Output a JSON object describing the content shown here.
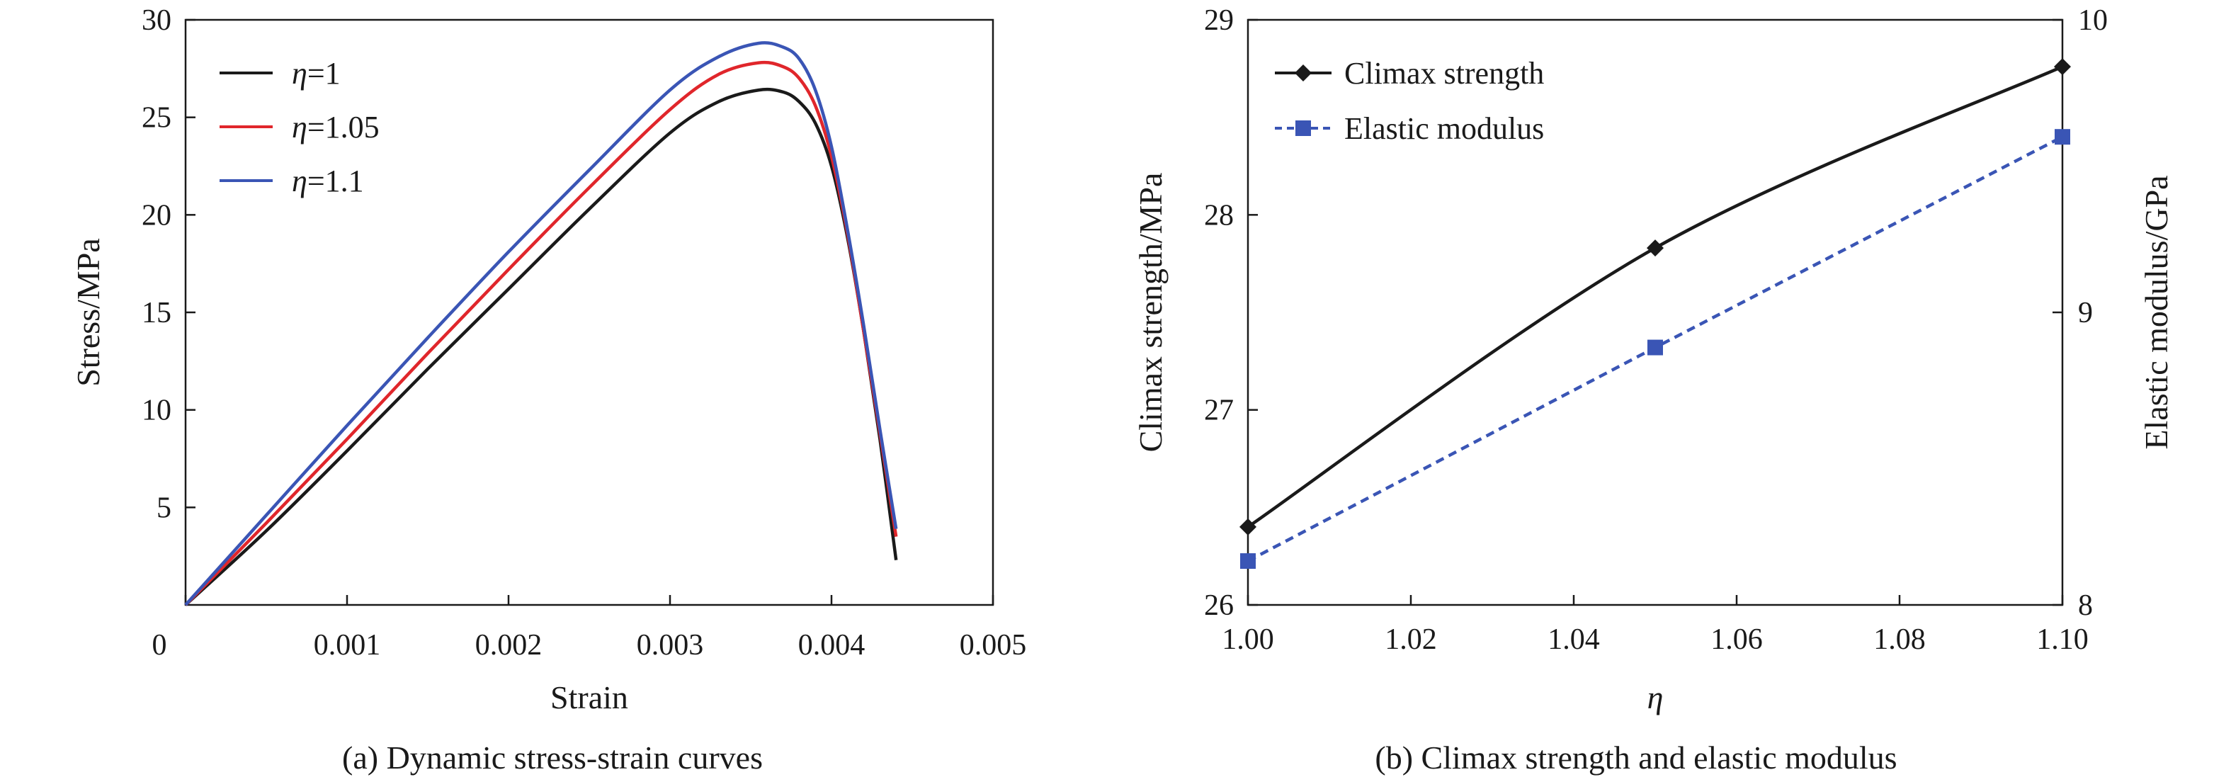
{
  "chart_data": [
    {
      "type": "line",
      "caption": "(a) Dynamic stress-strain curves",
      "xlabel": "Strain",
      "ylabel": "Stress/MPa",
      "xlim": [
        0,
        0.005
      ],
      "ylim": [
        0,
        30
      ],
      "x_ticks": [
        "0",
        "0.001",
        "0.002",
        "0.003",
        "0.004",
        "0.005"
      ],
      "y_ticks": [
        "5",
        "10",
        "15",
        "20",
        "25",
        "30"
      ],
      "grid": false,
      "legend_position": "top-left",
      "series": [
        {
          "name": "η=1",
          "color": "#1a1a1a",
          "x": [
            0,
            0.0005,
            0.001,
            0.0015,
            0.002,
            0.0025,
            0.003,
            0.0033,
            0.00355,
            0.0037,
            0.0038,
            0.0039,
            0.004,
            0.0041,
            0.0042,
            0.0043,
            0.0044
          ],
          "y": [
            0,
            3.8,
            7.9,
            12.1,
            16.2,
            20.3,
            24.2,
            25.8,
            26.4,
            26.3,
            25.8,
            24.7,
            22.5,
            18.8,
            14.0,
            8.5,
            2.3
          ]
        },
        {
          "name": "η=1.05",
          "color": "#e0262b",
          "x": [
            0,
            0.0005,
            0.001,
            0.0015,
            0.002,
            0.0025,
            0.003,
            0.0033,
            0.00355,
            0.0037,
            0.0038,
            0.0039,
            0.004,
            0.0041,
            0.0042,
            0.0043,
            0.0044
          ],
          "y": [
            0,
            4.2,
            8.5,
            12.9,
            17.2,
            21.4,
            25.4,
            27.2,
            27.8,
            27.6,
            27.0,
            25.6,
            23.0,
            19.0,
            14.0,
            8.8,
            3.5
          ]
        },
        {
          "name": "η=1.1",
          "color": "#3a55b5",
          "x": [
            0,
            0.0005,
            0.001,
            0.0015,
            0.002,
            0.0025,
            0.003,
            0.0033,
            0.00355,
            0.0037,
            0.0038,
            0.0039,
            0.004,
            0.0041,
            0.0042,
            0.0043,
            0.0044
          ],
          "y": [
            0,
            4.6,
            9.2,
            13.7,
            18.1,
            22.3,
            26.4,
            28.1,
            28.8,
            28.6,
            28.0,
            26.4,
            23.5,
            19.2,
            14.3,
            9.0,
            3.9
          ]
        }
      ]
    },
    {
      "type": "line",
      "caption": "(b) Climax strength and elastic modulus",
      "xlabel": "η",
      "ylabel": "Climax strength/MPa",
      "y2label": "Elastic modulus/GPa",
      "xlim": [
        1.0,
        1.1
      ],
      "ylim": [
        26,
        29
      ],
      "y2lim": [
        8,
        10
      ],
      "x_ticks": [
        "1.00",
        "1.02",
        "1.04",
        "1.06",
        "1.08",
        "1.10"
      ],
      "y_ticks": [
        "26",
        "27",
        "28",
        "29"
      ],
      "y2_ticks": [
        "8",
        "9",
        "10"
      ],
      "grid": false,
      "legend_position": "top-left",
      "series": [
        {
          "name": "Climax strength",
          "axis": "left",
          "color": "#1a1a1a",
          "marker": "diamond",
          "line_style": "solid",
          "x": [
            1.0,
            1.05,
            1.1
          ],
          "y": [
            26.4,
            27.83,
            28.76
          ]
        },
        {
          "name": "Elastic modulus",
          "axis": "right",
          "color": "#3a55b5",
          "marker": "square",
          "line_style": "dashed",
          "x": [
            1.0,
            1.05,
            1.1
          ],
          "y": [
            8.15,
            8.88,
            9.6
          ]
        }
      ]
    }
  ]
}
